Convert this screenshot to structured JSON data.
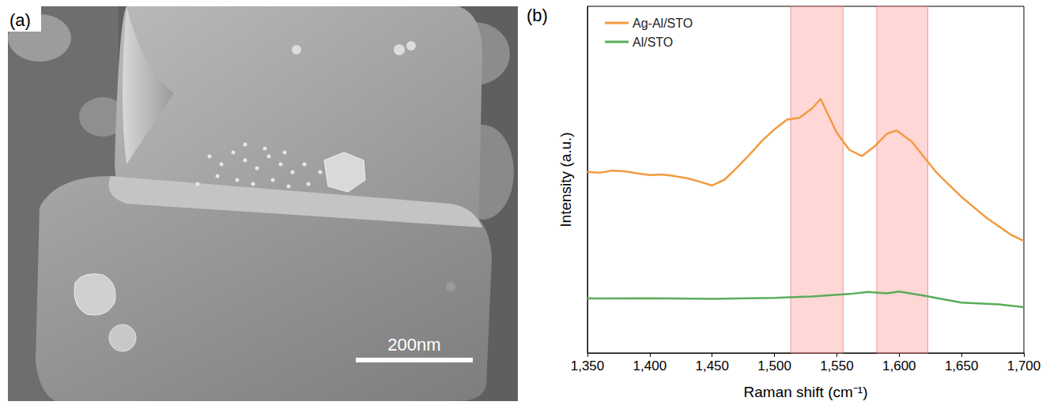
{
  "chart_data": {
    "type": "line",
    "panel": "(b)",
    "xlabel": "Raman shift (cm⁻¹)",
    "ylabel": "Intensity (a.u.)",
    "xlim": [
      1350,
      1700
    ],
    "xticks": [
      1350,
      1400,
      1450,
      1500,
      1550,
      1600,
      1650,
      1700
    ],
    "ylim": [
      0,
      100
    ],
    "grid": false,
    "tick_labels": "x",
    "legend": "upper left",
    "bands": [
      [
        1513,
        1555
      ],
      [
        1582,
        1623
      ]
    ],
    "series": [
      {
        "name": "Ag-Al/STO",
        "color": "#f39a3f",
        "x": [
          1350,
          1360,
          1370,
          1380,
          1390,
          1400,
          1410,
          1420,
          1430,
          1440,
          1450,
          1460,
          1470,
          1480,
          1490,
          1500,
          1510,
          1520,
          1530,
          1537,
          1540,
          1550,
          1560,
          1570,
          1580,
          1590,
          1598,
          1610,
          1620,
          1630,
          1640,
          1650,
          1660,
          1670,
          1680,
          1690,
          1700
        ],
        "values": [
          52.2,
          52.0,
          52.6,
          52.4,
          51.8,
          51.3,
          51.5,
          51.0,
          50.4,
          49.4,
          48.3,
          50.0,
          53.5,
          57.2,
          61.2,
          64.5,
          67.3,
          67.8,
          70.5,
          73.3,
          71.0,
          63.5,
          58.6,
          56.8,
          59.5,
          63.2,
          64.2,
          61.0,
          56.5,
          52.0,
          48.5,
          45.0,
          42.0,
          39.0,
          36.5,
          34.0,
          32.3
        ]
      },
      {
        "name": "Al/STO",
        "color": "#5aad5a",
        "x": [
          1350,
          1400,
          1450,
          1500,
          1530,
          1560,
          1575,
          1590,
          1600,
          1620,
          1650,
          1680,
          1700
        ],
        "values": [
          15.7,
          15.8,
          15.6,
          15.9,
          16.3,
          17.0,
          17.6,
          17.2,
          17.7,
          16.5,
          14.5,
          14.0,
          13.2
        ]
      }
    ]
  },
  "image": {
    "label": "(a)",
    "scale_bar": "200nm"
  }
}
